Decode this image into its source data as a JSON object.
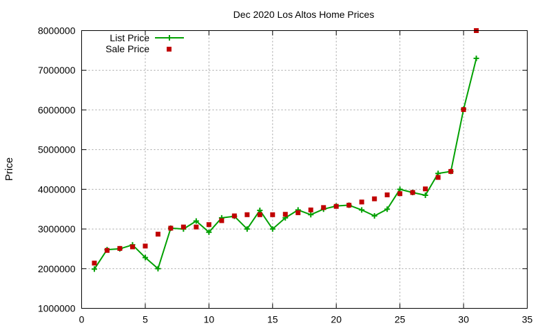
{
  "chart_data": {
    "type": "line",
    "title": "Dec 2020 Los Altos Home Prices",
    "xlabel": "",
    "ylabel": "Price",
    "xlim": [
      0,
      35
    ],
    "ylim": [
      1000000,
      8000000
    ],
    "x_ticks": [
      0,
      5,
      10,
      15,
      20,
      25,
      30,
      35
    ],
    "y_ticks": [
      1000000,
      2000000,
      3000000,
      4000000,
      5000000,
      6000000,
      7000000,
      8000000
    ],
    "grid": true,
    "legend_position": "top-left",
    "colors": {
      "list": "#00a000",
      "sale": "#c00000"
    },
    "series": [
      {
        "name": "List Price",
        "style": "line-plus",
        "x": [
          1,
          2,
          3,
          4,
          5,
          6,
          7,
          8,
          9,
          10,
          11,
          12,
          13,
          14,
          15,
          16,
          17,
          18,
          19,
          20,
          21,
          22,
          23,
          24,
          25,
          26,
          27,
          28,
          29,
          30,
          31
        ],
        "values": [
          1990000,
          2480000,
          2500000,
          2600000,
          2280000,
          2000000,
          3020000,
          3000000,
          3200000,
          2920000,
          3280000,
          3320000,
          3000000,
          3470000,
          3000000,
          3280000,
          3480000,
          3360000,
          3500000,
          3580000,
          3600000,
          3480000,
          3330000,
          3500000,
          4000000,
          3920000,
          3850000,
          4400000,
          4450000,
          6020000,
          7300000
        ]
      },
      {
        "name": "Sale Price",
        "style": "points-square",
        "x": [
          1,
          2,
          3,
          4,
          5,
          6,
          7,
          8,
          9,
          10,
          11,
          12,
          13,
          14,
          15,
          16,
          17,
          18,
          19,
          20,
          21,
          22,
          23,
          24,
          25,
          26,
          27,
          28,
          29,
          30,
          31
        ],
        "values": [
          2140000,
          2460000,
          2510000,
          2550000,
          2570000,
          2870000,
          3020000,
          3050000,
          3050000,
          3110000,
          3210000,
          3330000,
          3360000,
          3360000,
          3360000,
          3370000,
          3410000,
          3480000,
          3540000,
          3570000,
          3600000,
          3680000,
          3760000,
          3860000,
          3890000,
          3920000,
          4010000,
          4300000,
          4450000,
          6010000,
          8000000
        ]
      }
    ]
  }
}
